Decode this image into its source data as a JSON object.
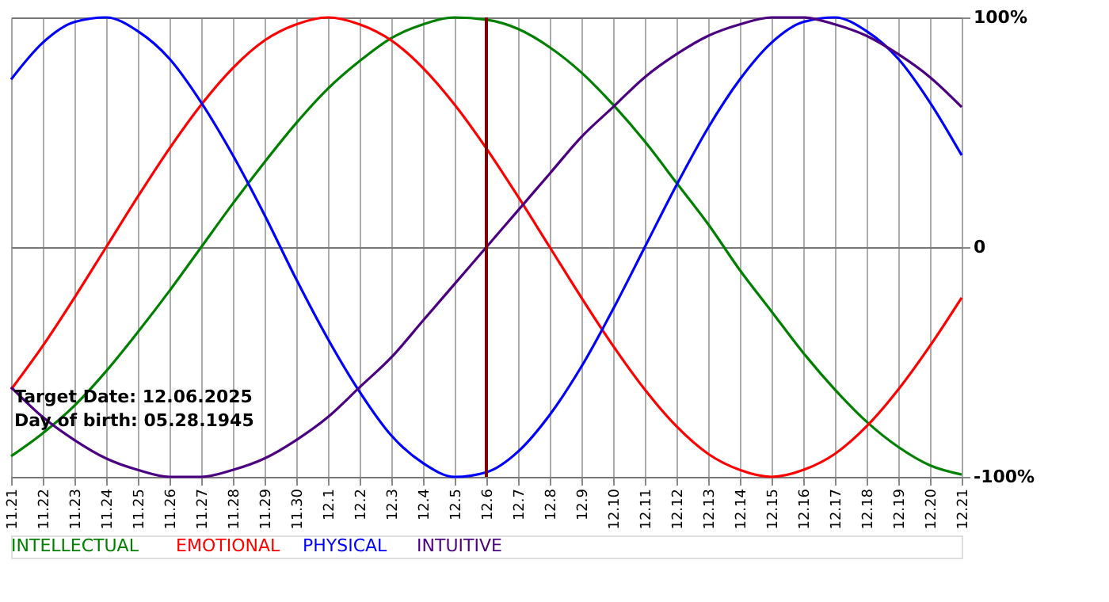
{
  "chart_data": {
    "type": "line",
    "categories": [
      "11.21",
      "11.22",
      "11.23",
      "11.24",
      "11.25",
      "11.26",
      "11.27",
      "11.28",
      "11.29",
      "11.30",
      "12.1",
      "12.2",
      "12.3",
      "12.4",
      "12.5",
      "12.6",
      "12.7",
      "12.8",
      "12.9",
      "12.10",
      "12.11",
      "12.12",
      "12.13",
      "12.14",
      "12.15",
      "12.16",
      "12.17",
      "12.18",
      "12.19",
      "12.20",
      "12.21"
    ],
    "series": [
      {
        "name": "INTELLECTUAL",
        "color": "#008000",
        "values": [
          -91,
          -81,
          -69,
          -54,
          -37,
          -19,
          0,
          19,
          37,
          54,
          69,
          81,
          91,
          97,
          100,
          99,
          95,
          87,
          76,
          62,
          46,
          28,
          10,
          -10,
          -28,
          -46,
          -62,
          -76,
          -87,
          -95,
          -99
        ]
      },
      {
        "name": "EMOTIONAL",
        "color": "#ff0000",
        "values": [
          -62,
          -43,
          -22,
          0,
          22,
          43,
          62,
          78,
          90,
          97,
          100,
          97,
          90,
          78,
          62,
          43,
          22,
          0,
          -22,
          -43,
          -62,
          -78,
          -90,
          -97,
          -100,
          -97,
          -90,
          -78,
          -62,
          -43,
          -22
        ]
      },
      {
        "name": "PHYSICAL",
        "color": "#0000ff",
        "values": [
          73,
          89,
          98,
          100,
          94,
          82,
          63,
          40,
          14,
          -14,
          -40,
          -63,
          -82,
          -94,
          -100,
          -98,
          -89,
          -73,
          -52,
          -27,
          0,
          27,
          52,
          73,
          89,
          98,
          100,
          94,
          82,
          63,
          40
        ]
      },
      {
        "name": "INTUITIVE",
        "color": "#4b0082",
        "values": [
          -61,
          -74,
          -84,
          -92,
          -97,
          -100,
          -100,
          -97,
          -92,
          -84,
          -74,
          -61,
          -48,
          -32,
          -16,
          0,
          16,
          32,
          48,
          61,
          74,
          84,
          92,
          97,
          100,
          100,
          97,
          92,
          84,
          74,
          61
        ]
      }
    ],
    "ylim": [
      -100,
      100
    ],
    "yticks": [
      {
        "value": 100,
        "label": "100%"
      },
      0,
      {
        "value": -100,
        "label": "-100%"
      }
    ],
    "grid": true,
    "legend": "bottom",
    "ref_lines": [
      {
        "axis": "x",
        "value": "12.6",
        "color": "#800000"
      }
    ],
    "annotations": [
      "Target Date: 12.06.2025",
      "Day of birth: 05.28.1945"
    ]
  }
}
